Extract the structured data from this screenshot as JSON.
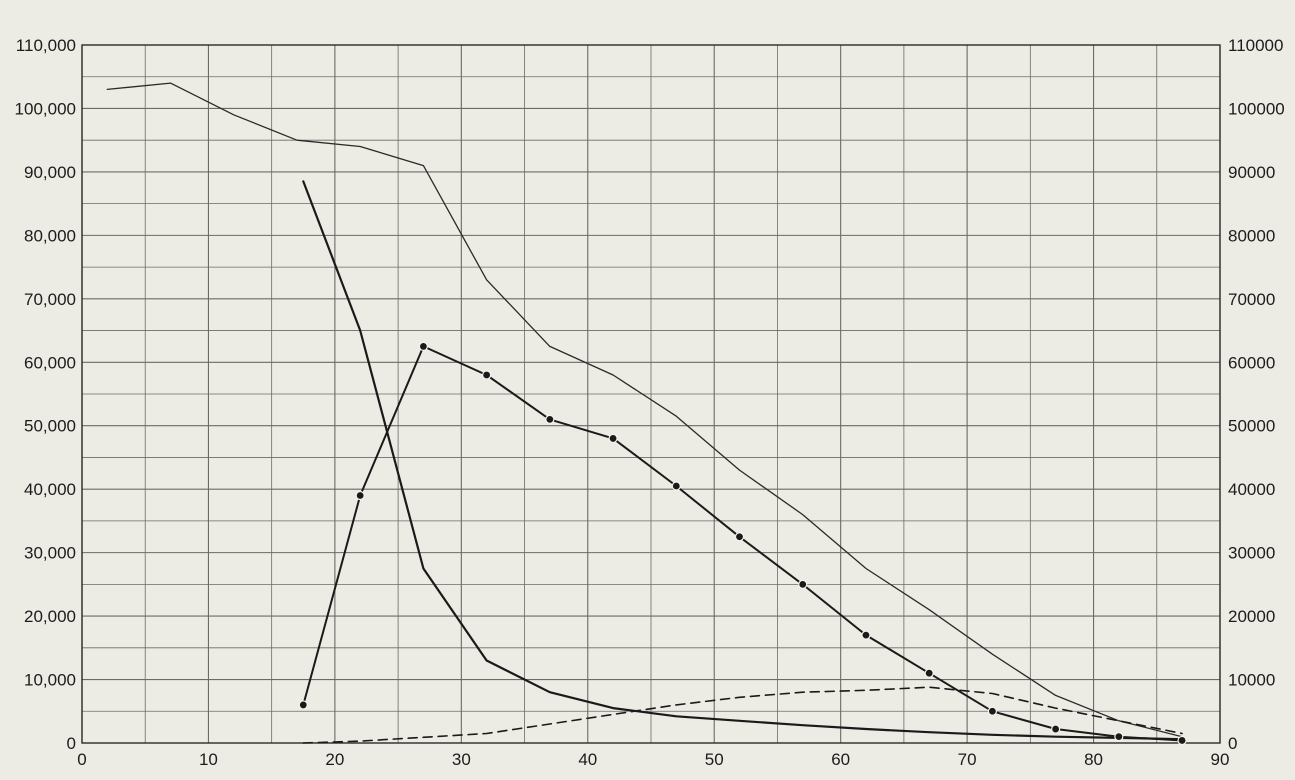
{
  "chart_data": {
    "type": "line",
    "title": "",
    "xlabel": "",
    "ylabel": "",
    "xlim": [
      0,
      90
    ],
    "ylim": [
      0,
      110000
    ],
    "x_ticks": [
      0,
      10,
      20,
      30,
      40,
      50,
      60,
      70,
      80,
      90
    ],
    "y_ticks_left": [
      "0",
      "10,000",
      "20,000",
      "30,000",
      "40,000",
      "50,000",
      "60,000",
      "70,000",
      "80,000",
      "90,000",
      "100,000",
      "110,000"
    ],
    "y_ticks_right": [
      "0",
      "10000",
      "20000",
      "30000",
      "40000",
      "50000",
      "60000",
      "70000",
      "80000",
      "90000",
      "100000",
      "110000"
    ],
    "y_tick_values": [
      0,
      10000,
      20000,
      30000,
      40000,
      50000,
      60000,
      70000,
      80000,
      90000,
      100000,
      110000
    ],
    "grid": true,
    "grid_minor_x_step": 5,
    "grid_minor_y_step": 5000,
    "series": [
      {
        "style": "thin-solid",
        "color": "#2a2a2a",
        "points": [
          [
            2,
            103000
          ],
          [
            7,
            104000
          ],
          [
            12,
            99000
          ],
          [
            17,
            95000
          ],
          [
            22,
            94000
          ],
          [
            27,
            91000
          ],
          [
            32,
            73000
          ],
          [
            37,
            62500
          ],
          [
            42,
            58000
          ],
          [
            47,
            51500
          ],
          [
            52,
            43000
          ],
          [
            57,
            36000
          ],
          [
            62,
            27500
          ],
          [
            67,
            21000
          ],
          [
            72,
            14000
          ],
          [
            77,
            7500
          ],
          [
            82,
            3500
          ],
          [
            87,
            1000
          ]
        ]
      },
      {
        "style": "thick-solid",
        "color": "#1a1a1a",
        "points": [
          [
            17.5,
            88500
          ],
          [
            22,
            65000
          ],
          [
            27,
            27500
          ],
          [
            32,
            13000
          ],
          [
            37,
            8000
          ],
          [
            42,
            5500
          ],
          [
            47,
            4200
          ],
          [
            52,
            3500
          ],
          [
            57,
            2800
          ],
          [
            62,
            2200
          ],
          [
            67,
            1700
          ],
          [
            72,
            1300
          ],
          [
            77,
            1000
          ],
          [
            82,
            800
          ],
          [
            87,
            600
          ]
        ]
      },
      {
        "style": "solid-dots",
        "color": "#1a1a1a",
        "points": [
          [
            17.5,
            6000
          ],
          [
            22,
            39000
          ],
          [
            27,
            62500
          ],
          [
            32,
            58000
          ],
          [
            37,
            51000
          ],
          [
            42,
            48000
          ],
          [
            47,
            40500
          ],
          [
            52,
            32500
          ],
          [
            57,
            25000
          ],
          [
            62,
            17000
          ],
          [
            67,
            11000
          ],
          [
            72,
            5000
          ],
          [
            77,
            2200
          ],
          [
            82,
            1000
          ],
          [
            87,
            400
          ]
        ]
      },
      {
        "style": "dashed",
        "color": "#1a1a1a",
        "points": [
          [
            17.5,
            0
          ],
          [
            22,
            300
          ],
          [
            27,
            900
          ],
          [
            32,
            1500
          ],
          [
            37,
            3000
          ],
          [
            42,
            4500
          ],
          [
            47,
            6000
          ],
          [
            52,
            7200
          ],
          [
            57,
            8000
          ],
          [
            62,
            8300
          ],
          [
            67,
            8800
          ],
          [
            72,
            7800
          ],
          [
            77,
            5500
          ],
          [
            82,
            3500
          ],
          [
            87,
            1500
          ]
        ]
      }
    ]
  }
}
